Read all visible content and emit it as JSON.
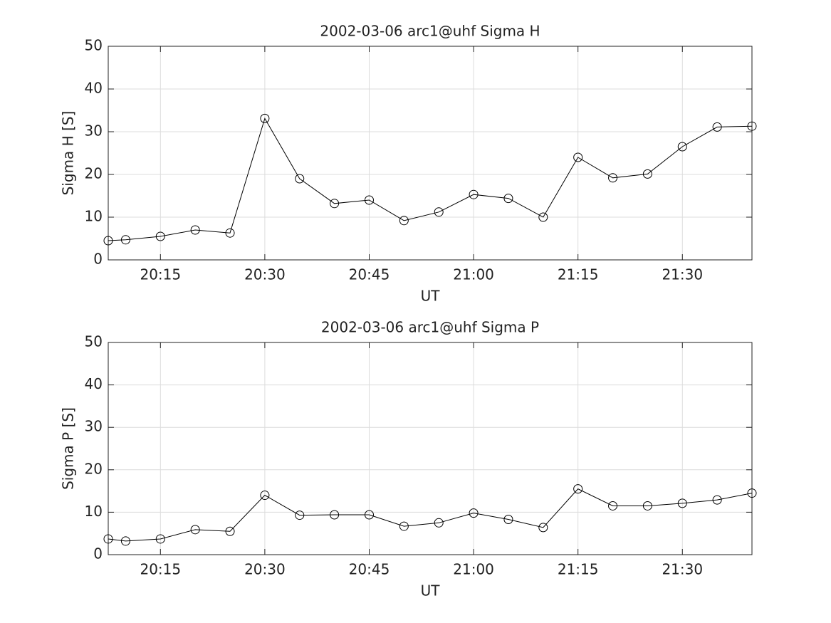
{
  "chart_data": [
    {
      "type": "line",
      "title": "2002-03-06  arc1@uhf Sigma H",
      "xlabel": "UT",
      "ylabel": "Sigma H [S]",
      "x": [
        1207.5,
        1210,
        1215,
        1220,
        1225,
        1230,
        1235,
        1240,
        1245,
        1250,
        1255,
        1260,
        1265,
        1270,
        1275,
        1280,
        1285,
        1290,
        1295,
        1300
      ],
      "values": [
        4.5,
        4.7,
        5.5,
        7,
        6.3,
        33.1,
        19,
        13.2,
        14,
        9.2,
        11.2,
        15.3,
        14.4,
        10,
        24,
        19.2,
        20.1,
        26.5,
        31.1,
        31.3
      ],
      "color": "#000000",
      "marker": "circle",
      "grid": true,
      "xlim": [
        1207.5,
        1300
      ],
      "xticks": [
        {
          "value": 1215,
          "label": "20:15"
        },
        {
          "value": 1230,
          "label": "20:30"
        },
        {
          "value": 1245,
          "label": "20:45"
        },
        {
          "value": 1260,
          "label": "21:00"
        },
        {
          "value": 1275,
          "label": "21:15"
        },
        {
          "value": 1290,
          "label": "21:30"
        }
      ],
      "ylim": [
        0,
        50
      ],
      "yticks": [
        0,
        10,
        20,
        30,
        40,
        50
      ]
    },
    {
      "type": "line",
      "title": "2002-03-06  arc1@uhf Sigma P",
      "xlabel": "UT",
      "ylabel": "Sigma P [S]",
      "x": [
        1207.5,
        1210,
        1215,
        1220,
        1225,
        1230,
        1235,
        1240,
        1245,
        1250,
        1255,
        1260,
        1265,
        1270,
        1275,
        1280,
        1285,
        1290,
        1295,
        1300
      ],
      "values": [
        3.7,
        3.2,
        3.7,
        5.9,
        5.5,
        14,
        9.3,
        9.4,
        9.4,
        6.7,
        7.5,
        9.8,
        8.3,
        6.4,
        15.5,
        11.5,
        11.5,
        12.1,
        12.9,
        14.5
      ],
      "color": "#000000",
      "marker": "circle",
      "grid": true,
      "xlim": [
        1207.5,
        1300
      ],
      "xticks": [
        {
          "value": 1215,
          "label": "20:15"
        },
        {
          "value": 1230,
          "label": "20:30"
        },
        {
          "value": 1245,
          "label": "20:45"
        },
        {
          "value": 1260,
          "label": "21:00"
        },
        {
          "value": 1275,
          "label": "21:15"
        },
        {
          "value": 1290,
          "label": "21:30"
        }
      ],
      "ylim": [
        0,
        50
      ],
      "yticks": [
        0,
        10,
        20,
        30,
        40,
        50
      ]
    }
  ]
}
